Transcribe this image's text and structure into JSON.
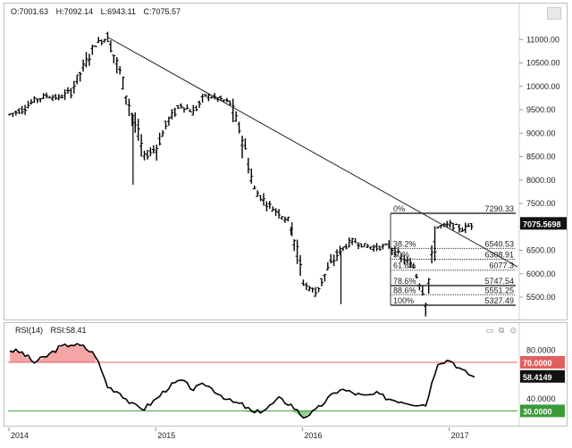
{
  "ohlc": {
    "open": "O:7001.63",
    "high": "H:7092.14",
    "low": "L:6943.11",
    "close": "C:7075.57"
  },
  "price_axis": {
    "ticks": [
      "11000.00",
      "10500.00",
      "10000.00",
      "9500.00",
      "9000.00",
      "8500.00",
      "8000.00",
      "7500.00",
      "7000.00",
      "6500.00",
      "6000.00",
      "5500.00"
    ],
    "current_price_label": "7075.5698"
  },
  "fibonacci": {
    "levels": [
      {
        "pct": "0%",
        "value": "7290.33"
      },
      {
        "pct": "38.2%",
        "value": "6540.53"
      },
      {
        "pct": "50%",
        "value": "6308.91"
      },
      {
        "pct": "61.8%",
        "value": "6077.3"
      },
      {
        "pct": "78.6%",
        "value": "5747.54"
      },
      {
        "pct": "88.6%",
        "value": "5551.25"
      },
      {
        "pct": "100%",
        "value": "5327.49"
      }
    ]
  },
  "rsi": {
    "name": "RSI(14)",
    "value_label": "RSI:58.41",
    "ticks": [
      "80.0000",
      "40.0000"
    ],
    "upper_label": "70.0000",
    "lower_label": "30.0000",
    "current_label": "58.4149",
    "upper_color": "#e06060",
    "lower_color": "#3a9a3a"
  },
  "date_axis": {
    "labels": [
      "2014",
      "2015",
      "2016",
      "2017"
    ]
  },
  "window_controls": {
    "maximize": "▭",
    "restore": "⧉",
    "close": "⊙"
  },
  "chart_data": [
    {
      "type": "ohlc",
      "title": "",
      "ylim": [
        5100,
        11500
      ],
      "x_range": [
        "2014-01",
        "2017-03"
      ],
      "series": [
        {
          "values": [
            [
              "2014-01",
              9400
            ],
            [
              "2014-02",
              9500
            ],
            [
              "2014-03",
              9700
            ],
            [
              "2014-04",
              9800
            ],
            [
              "2014-05",
              9750
            ],
            [
              "2014-06",
              9900
            ],
            [
              "2014-07",
              10400
            ],
            [
              "2014-08",
              10900
            ],
            [
              "2014-09",
              11050
            ],
            [
              "2014-10",
              10300
            ],
            [
              "2014-11",
              9400
            ],
            [
              "2014-12",
              8500
            ],
            [
              "2015-01",
              8700
            ],
            [
              "2015-02",
              9300
            ],
            [
              "2015-03",
              9600
            ],
            [
              "2015-04",
              9450
            ],
            [
              "2015-05",
              9800
            ],
            [
              "2015-06",
              9750
            ],
            [
              "2015-07",
              9650
            ],
            [
              "2015-08",
              8900
            ],
            [
              "2015-09",
              7800
            ],
            [
              "2015-10",
              7500
            ],
            [
              "2015-11",
              7300
            ],
            [
              "2015-12",
              7100
            ],
            [
              "2016-01",
              5800
            ],
            [
              "2016-02",
              5600
            ],
            [
              "2016-03",
              6100
            ],
            [
              "2016-04",
              6500
            ],
            [
              "2016-05",
              6700
            ],
            [
              "2016-06",
              6600
            ],
            [
              "2016-07",
              6550
            ],
            [
              "2016-08",
              6600
            ],
            [
              "2016-09",
              6350
            ],
            [
              "2016-10",
              6150
            ],
            [
              "2016-11",
              5500
            ],
            [
              "2016-12",
              7000
            ],
            [
              "2017-01",
              7050
            ],
            [
              "2017-02",
              6950
            ],
            [
              "2017-03",
              7075
            ]
          ]
        }
      ],
      "trendline": [
        [
          "2014-09",
          11050
        ],
        [
          "2017-03",
          6720
        ]
      ]
    },
    {
      "type": "line",
      "title": "",
      "ylim": [
        20,
        95
      ],
      "hlines": [
        70,
        30
      ],
      "series": [
        {
          "name": "RSI(14)",
          "values": [
            80,
            78,
            70,
            75,
            82,
            85,
            83,
            76,
            50,
            45,
            35,
            32,
            40,
            50,
            55,
            48,
            52,
            45,
            38,
            35,
            28,
            32,
            40,
            35,
            25,
            30,
            40,
            48,
            45,
            42,
            44,
            40,
            38,
            36,
            35,
            70,
            72,
            63,
            58
          ]
        }
      ]
    }
  ]
}
